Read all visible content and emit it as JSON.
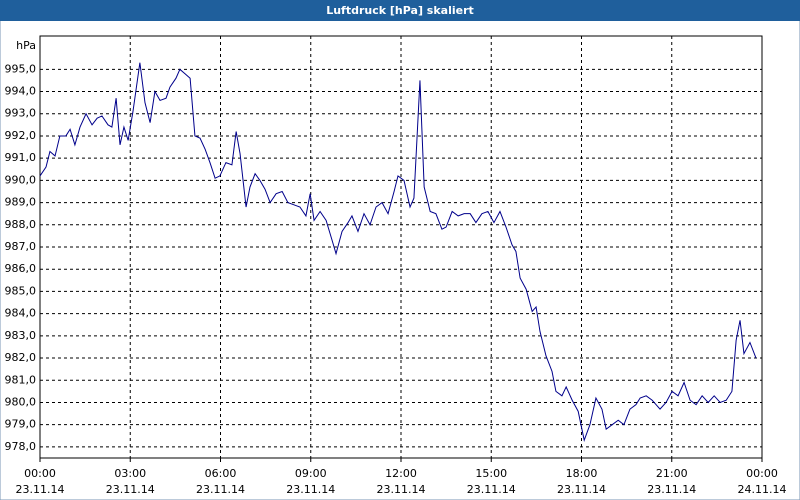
{
  "chart_data": {
    "type": "line",
    "title": "Luftdruck [hPa] skaliert",
    "y_label": "hPa",
    "x": [
      0,
      0.2,
      0.33,
      0.5,
      0.66,
      0.86,
      1.0,
      1.16,
      1.33,
      1.53,
      1.73,
      1.9,
      2.06,
      2.26,
      2.39,
      2.53,
      2.66,
      2.79,
      2.93,
      3.09,
      3.32,
      3.49,
      3.66,
      3.82,
      3.99,
      4.19,
      4.32,
      4.52,
      4.65,
      4.82,
      4.99,
      5.15,
      5.32,
      5.49,
      5.65,
      5.82,
      5.98,
      6.18,
      6.38,
      6.52,
      6.65,
      6.85,
      6.98,
      7.15,
      7.31,
      7.48,
      7.65,
      7.85,
      8.05,
      8.24,
      8.44,
      8.64,
      8.84,
      8.98,
      9.11,
      9.31,
      9.51,
      9.71,
      9.84,
      10.04,
      10.24,
      10.37,
      10.57,
      10.77,
      10.97,
      11.17,
      11.37,
      11.57,
      11.77,
      11.9,
      12.1,
      12.3,
      12.43,
      12.63,
      12.77,
      12.97,
      13.16,
      13.36,
      13.5,
      13.7,
      13.9,
      14.1,
      14.3,
      14.49,
      14.69,
      14.89,
      15.09,
      15.29,
      15.49,
      15.69,
      15.82,
      15.96,
      16.16,
      16.36,
      16.49,
      16.62,
      16.82,
      17.02,
      17.15,
      17.35,
      17.49,
      17.69,
      17.89,
      18.09,
      18.28,
      18.48,
      18.68,
      18.82,
      19.02,
      19.22,
      19.41,
      19.61,
      19.81,
      19.95,
      20.15,
      20.35,
      20.48,
      20.61,
      20.81,
      21.01,
      21.21,
      21.41,
      21.61,
      21.81,
      22.01,
      22.21,
      22.41,
      22.61,
      22.81,
      23.0,
      23.14,
      23.27,
      23.4,
      23.6,
      23.8
    ],
    "series": [
      {
        "name": "Luftdruck",
        "color": "#00008b",
        "values": [
          990.2,
          990.6,
          991.3,
          991.1,
          992.0,
          992.0,
          992.3,
          991.6,
          992.4,
          993.0,
          992.5,
          992.8,
          992.9,
          992.5,
          992.4,
          993.7,
          991.6,
          992.4,
          991.8,
          993.1,
          995.3,
          993.5,
          992.6,
          994.0,
          993.6,
          993.7,
          994.2,
          994.6,
          995.0,
          994.8,
          994.6,
          992.0,
          991.9,
          991.4,
          990.8,
          990.1,
          990.2,
          990.8,
          990.7,
          992.2,
          991.2,
          988.8,
          989.7,
          990.3,
          990.0,
          989.6,
          989.0,
          989.4,
          989.5,
          989.0,
          988.9,
          988.8,
          988.4,
          989.4,
          988.2,
          988.6,
          988.2,
          987.3,
          986.7,
          987.7,
          988.1,
          988.4,
          987.7,
          988.5,
          988.0,
          988.8,
          989.0,
          988.5,
          989.5,
          990.2,
          990.0,
          988.8,
          989.2,
          994.5,
          989.7,
          988.6,
          988.5,
          987.8,
          987.9,
          988.6,
          988.4,
          988.5,
          988.5,
          988.1,
          988.5,
          988.6,
          988.1,
          988.6,
          987.9,
          987.1,
          986.8,
          985.6,
          985.1,
          984.1,
          984.3,
          983.2,
          982.1,
          981.4,
          980.5,
          980.3,
          980.7,
          980.1,
          979.6,
          978.3,
          979.0,
          980.2,
          979.7,
          978.8,
          979.0,
          979.2,
          979.0,
          979.7,
          979.9,
          980.2,
          980.3,
          980.1,
          979.9,
          979.7,
          980.0,
          980.5,
          980.3,
          980.9,
          980.1,
          979.9,
          980.3,
          980.0,
          980.3,
          980.0,
          980.1,
          980.5,
          982.8,
          983.7,
          982.2,
          982.7,
          982.0
        ]
      }
    ],
    "xlim": [
      0,
      24
    ],
    "xticks": [
      {
        "value": 0,
        "label": "00:00"
      },
      {
        "value": 3,
        "label": "03:00"
      },
      {
        "value": 6,
        "label": "06:00"
      },
      {
        "value": 9,
        "label": "09:00"
      },
      {
        "value": 12,
        "label": "12:00"
      },
      {
        "value": 15,
        "label": "15:00"
      },
      {
        "value": 18,
        "label": "18:00"
      },
      {
        "value": 21,
        "label": "21:00"
      },
      {
        "value": 24,
        "label": "00:00"
      }
    ],
    "xtick_dates": [
      "23.11.14",
      "23.11.14",
      "23.11.14",
      "23.11.14",
      "23.11.14",
      "23.11.14",
      "23.11.14",
      "23.11.14",
      "24.11.14"
    ],
    "ylim": [
      977.5,
      996.5
    ],
    "yticks": [
      {
        "value": 978,
        "label": "978,0"
      },
      {
        "value": 979,
        "label": "979,0"
      },
      {
        "value": 980,
        "label": "980,0"
      },
      {
        "value": 981,
        "label": "981,0"
      },
      {
        "value": 982,
        "label": "982,0"
      },
      {
        "value": 983,
        "label": "983,0"
      },
      {
        "value": 984,
        "label": "984,0"
      },
      {
        "value": 985,
        "label": "985,0"
      },
      {
        "value": 986,
        "label": "986,0"
      },
      {
        "value": 987,
        "label": "987,0"
      },
      {
        "value": 988,
        "label": "988,0"
      },
      {
        "value": 989,
        "label": "989,0"
      },
      {
        "value": 990,
        "label": "990,0"
      },
      {
        "value": 991,
        "label": "991,0"
      },
      {
        "value": 992,
        "label": "992,0"
      },
      {
        "value": 993,
        "label": "993,0"
      },
      {
        "value": 994,
        "label": "994,0"
      },
      {
        "value": 995,
        "label": "995,0"
      }
    ],
    "grid": true
  }
}
